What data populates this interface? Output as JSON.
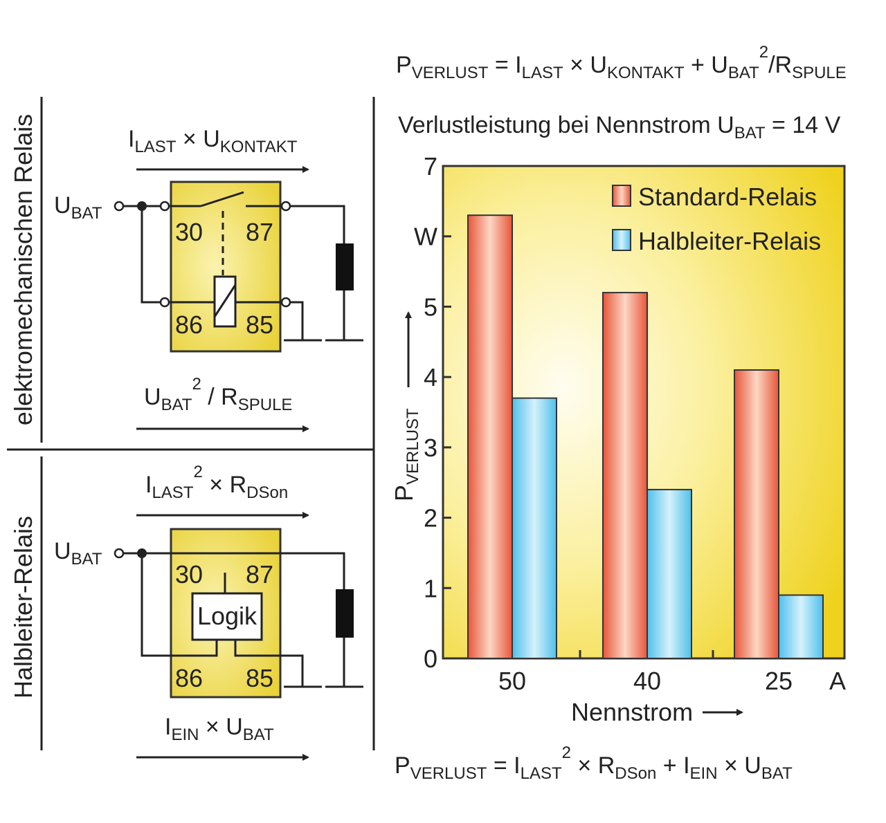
{
  "formulas": {
    "top": [
      {
        "t": "P"
      },
      {
        "t": "VERLUST",
        "sub": true
      },
      {
        "t": " = I"
      },
      {
        "t": "LAST",
        "sub": true
      },
      {
        "t": " × U"
      },
      {
        "t": "KONTAKT",
        "sub": true
      },
      {
        "t": " + U"
      },
      {
        "t": "BAT",
        "sub": true
      },
      {
        "t": "2",
        "sup": true
      },
      {
        "t": "/R"
      },
      {
        "t": "SPULE",
        "sub": true
      }
    ],
    "bottom": [
      {
        "t": "P"
      },
      {
        "t": "VERLUST",
        "sub": true
      },
      {
        "t": " = I"
      },
      {
        "t": "LAST",
        "sub": true
      },
      {
        "t": "2",
        "sup": true
      },
      {
        "t": " × R"
      },
      {
        "t": "DSon",
        "sub": true
      },
      {
        "t": " + I"
      },
      {
        "t": "EIN",
        "sub": true
      },
      {
        "t": " × U"
      },
      {
        "t": "BAT",
        "sub": true
      }
    ],
    "em_top": [
      {
        "t": "I"
      },
      {
        "t": "LAST",
        "sub": true
      },
      {
        "t": " × U"
      },
      {
        "t": "KONTAKT",
        "sub": true
      }
    ],
    "em_bottom": [
      {
        "t": "U"
      },
      {
        "t": "BAT",
        "sub": true
      },
      {
        "t": "2",
        "sup": true
      },
      {
        "t": " / R"
      },
      {
        "t": "SPULE",
        "sub": true
      }
    ],
    "hl_top": [
      {
        "t": "I"
      },
      {
        "t": "LAST",
        "sub": true
      },
      {
        "t": "2",
        "sup": true
      },
      {
        "t": " × R"
      },
      {
        "t": "DSon",
        "sub": true
      }
    ],
    "hl_bottom": [
      {
        "t": "I"
      },
      {
        "t": "EIN",
        "sub": true
      },
      {
        "t": " × U"
      },
      {
        "t": "BAT",
        "sub": true
      }
    ],
    "ubat1": [
      {
        "t": "U"
      },
      {
        "t": "BAT",
        "sub": true
      }
    ],
    "ubat2": [
      {
        "t": "U"
      },
      {
        "t": "BAT",
        "sub": true
      }
    ],
    "subtitle": [
      {
        "t": "Verlustleistung bei Nennstrom U"
      },
      {
        "t": "BAT",
        "sub": true
      },
      {
        "t": " = 14 V"
      }
    ],
    "ylabel": [
      {
        "t": "P"
      },
      {
        "t": "VERLUST",
        "sub": true
      }
    ]
  },
  "sections": {
    "electromechanical": "elektromechanischen Relais",
    "semiconductor": "Halbleiter-Relais"
  },
  "pins": {
    "p30": "30",
    "p87": "87",
    "p86": "86",
    "p85": "85"
  },
  "logic_label": "Logik",
  "chart_data": {
    "type": "bar",
    "title": "Verlustleistung bei Nennstrom UBAT = 14 V",
    "xlabel": "Nennstrom",
    "ylabel": "PVERLUST",
    "x_unit": "A",
    "y_unit": "W",
    "categories": [
      "50",
      "40",
      "25"
    ],
    "series": [
      {
        "name": "Standard-Relais",
        "color": "#e8553a",
        "values": [
          6.3,
          5.2,
          4.1
        ]
      },
      {
        "name": "Halbleiter-Relais",
        "color": "#4fc0ec",
        "values": [
          3.7,
          2.4,
          0.9
        ]
      }
    ],
    "ylim": [
      0,
      7
    ],
    "yticks": [
      "0",
      "1",
      "2",
      "3",
      "4",
      "5",
      "W",
      "7"
    ],
    "legend": "top-right",
    "grid": false
  }
}
